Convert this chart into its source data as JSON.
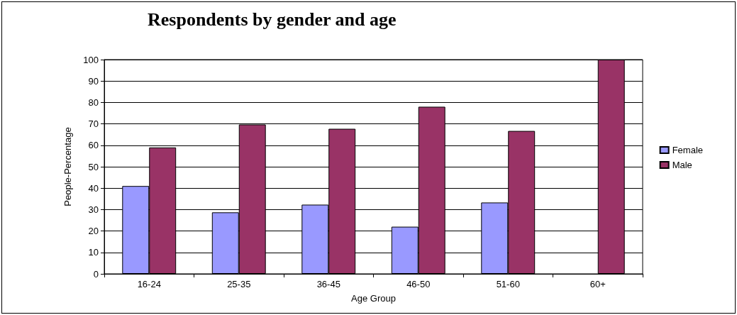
{
  "chart_data": {
    "type": "bar",
    "title": "Respondents by gender and age",
    "xlabel": "Age Group",
    "ylabel": "People-Percentage",
    "categories": [
      "16-24",
      "25-35",
      "36-45",
      "46-50",
      "51-60",
      "60+"
    ],
    "series": [
      {
        "name": "Female",
        "color": "#9999ff",
        "values": [
          41,
          28.7,
          32.3,
          22,
          33.3,
          null
        ]
      },
      {
        "name": "Male",
        "color": "#993366",
        "values": [
          59,
          69.7,
          67.7,
          78,
          66.7,
          100
        ]
      }
    ],
    "ylim": [
      0,
      100
    ],
    "yticks": [
      0,
      10,
      20,
      30,
      40,
      50,
      60,
      70,
      80,
      90,
      100
    ],
    "grid": "y",
    "legend": "right"
  }
}
